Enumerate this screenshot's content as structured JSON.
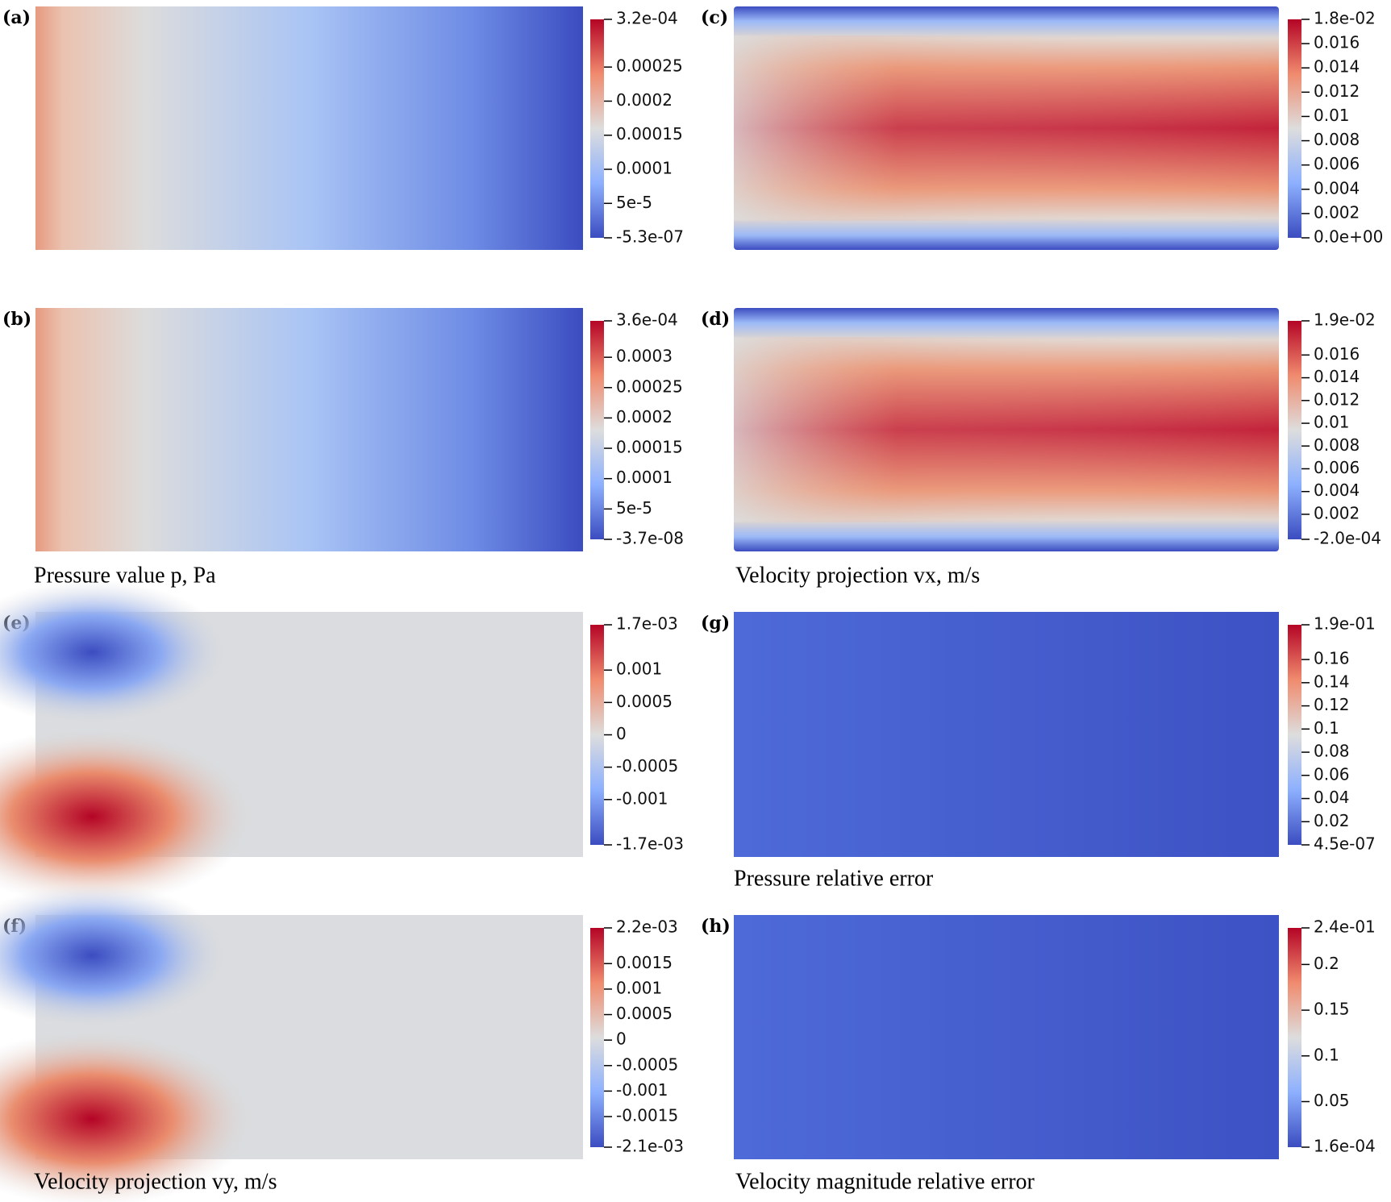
{
  "panels": [
    {
      "label": "(a)",
      "colorbar": {
        "ticks": [
          {
            "value": 0.00032,
            "label": "3.2e-04"
          },
          0.00025,
          0.0002,
          0.00015,
          0.0001,
          {
            "value": 5e-05,
            "label": "5e-5"
          },
          {
            "value": -5.3e-07,
            "label": "-5.3e-07"
          }
        ]
      }
    },
    {
      "label": "(c)",
      "colorbar": {
        "ticks": [
          {
            "value": 0.018,
            "label": "1.8e-02"
          },
          0.016,
          0.014,
          0.012,
          0.01,
          0.008,
          0.006,
          0.004,
          0.002,
          {
            "value": 0,
            "label": "0.0e+00"
          }
        ]
      }
    },
    {
      "label": "(b)",
      "colorbar": {
        "ticks": [
          {
            "value": 0.00036,
            "label": "3.6e-04"
          },
          0.0003,
          0.00025,
          0.0002,
          0.00015,
          0.0001,
          {
            "value": 5e-05,
            "label": "5e-5"
          },
          {
            "value": -3.7e-08,
            "label": "-3.7e-08"
          }
        ]
      }
    },
    {
      "label": "(d)",
      "colorbar": {
        "ticks": [
          {
            "value": 0.019,
            "label": "1.9e-02"
          },
          0.016,
          0.014,
          0.012,
          0.01,
          0.008,
          0.006,
          0.004,
          0.002,
          {
            "value": -0.0002,
            "label": "-2.0e-04"
          }
        ]
      }
    },
    {
      "label": "(e)",
      "colorbar": {
        "ticks": [
          {
            "value": 0.0017,
            "label": "1.7e-03"
          },
          0.001,
          0.0005,
          0,
          -0.0005,
          -0.001,
          {
            "value": -0.0017,
            "label": "-1.7e-03"
          }
        ]
      }
    },
    {
      "label": "(g)",
      "colorbar": {
        "ticks": [
          {
            "value": 0.19,
            "label": "1.9e-01"
          },
          0.16,
          0.14,
          0.12,
          0.1,
          0.08,
          0.06,
          0.04,
          0.02,
          {
            "value": 4.5e-07,
            "label": "4.5e-07"
          }
        ]
      }
    },
    {
      "label": "(f)",
      "colorbar": {
        "ticks": [
          {
            "value": 0.0022,
            "label": "2.2e-03"
          },
          0.0015,
          0.001,
          0.0005,
          0,
          -0.0005,
          -0.001,
          -0.0015,
          {
            "value": -0.0021,
            "label": "-2.1e-03"
          }
        ]
      }
    },
    {
      "label": "(h)",
      "colorbar": {
        "ticks": [
          {
            "value": 0.24,
            "label": "2.4e-01"
          },
          0.2,
          0.15,
          0.1,
          0.05,
          {
            "value": 0.00016,
            "label": "1.6e-04"
          }
        ]
      }
    }
  ],
  "captions": [
    "Pressure value p, Pa",
    "Velocity projection vx, m/s",
    "Pressure relative error",
    "Velocity projection vy, m/s",
    "Velocity magnitude relative error"
  ]
}
